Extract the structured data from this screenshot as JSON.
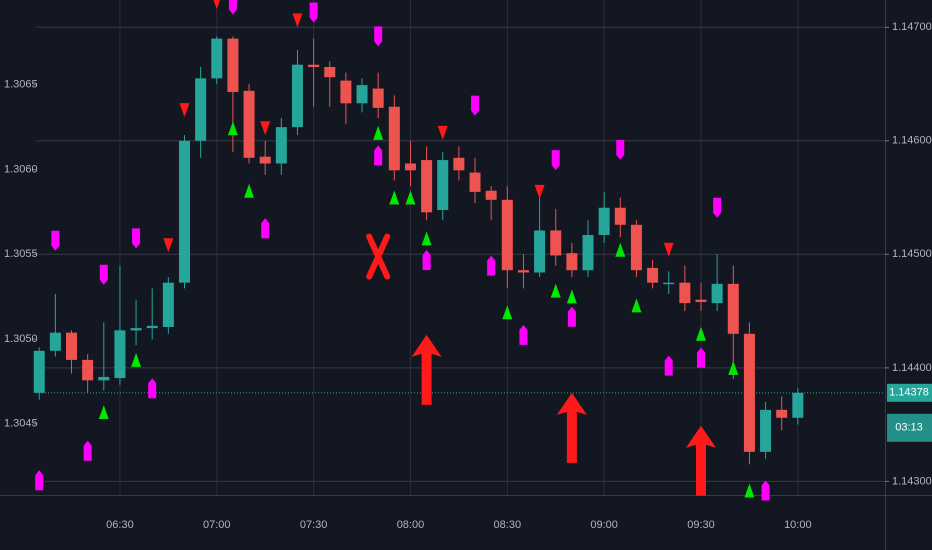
{
  "chart_data": {
    "type": "candlestick",
    "x": [
      365,
      370,
      375,
      380,
      385,
      390,
      395,
      400,
      405,
      410,
      415,
      420,
      425,
      430,
      435,
      440,
      445,
      450,
      455,
      460,
      465,
      470,
      475,
      480,
      485,
      490,
      495,
      500,
      505,
      510,
      515,
      520,
      525,
      530,
      535,
      540,
      545,
      550,
      555,
      560,
      565,
      570,
      575,
      580,
      585,
      590,
      595,
      600
    ],
    "open": [
      1.14378,
      1.14415,
      1.14431,
      1.14407,
      1.14389,
      1.14391,
      1.14433,
      1.14435,
      1.14436,
      1.14475,
      1.146,
      1.14655,
      1.1469,
      1.14644,
      1.14586,
      1.1458,
      1.14612,
      1.14667,
      1.14665,
      1.14653,
      1.14633,
      1.14646,
      1.1463,
      1.1458,
      1.14583,
      1.14539,
      1.14585,
      1.14572,
      1.14556,
      1.14548,
      1.14486,
      1.14484,
      1.14521,
      1.14501,
      1.14486,
      1.14517,
      1.14541,
      1.14526,
      1.14488,
      1.14474,
      1.14475,
      1.1446,
      1.14457,
      1.14474,
      1.1443,
      1.14326,
      1.14363,
      1.14356
    ],
    "high": [
      1.14418,
      1.14465,
      1.14433,
      1.14412,
      1.1444,
      1.1449,
      1.1446,
      1.1447,
      1.1448,
      1.14605,
      1.14665,
      1.14692,
      1.14692,
      1.1465,
      1.146,
      1.1462,
      1.1468,
      1.1469,
      1.1467,
      1.1466,
      1.14655,
      1.1466,
      1.1464,
      1.146,
      1.14595,
      1.1459,
      1.14595,
      1.14585,
      1.1456,
      1.1456,
      1.145,
      1.1456,
      1.1454,
      1.1451,
      1.1453,
      1.14555,
      1.1455,
      1.1453,
      1.14495,
      1.14485,
      1.1449,
      1.14475,
      1.145,
      1.1449,
      1.1444,
      1.1437,
      1.14375,
      1.14382
    ],
    "low": [
      1.14372,
      1.1441,
      1.14395,
      1.14378,
      1.1438,
      1.14385,
      1.1442,
      1.14425,
      1.1443,
      1.1447,
      1.14585,
      1.1465,
      1.1459,
      1.1458,
      1.1457,
      1.1457,
      1.14605,
      1.1463,
      1.1463,
      1.14615,
      1.14625,
      1.1462,
      1.14565,
      1.1456,
      1.1453,
      1.1453,
      1.14565,
      1.14545,
      1.1453,
      1.1447,
      1.1447,
      1.1448,
      1.1449,
      1.1448,
      1.1448,
      1.1451,
      1.14515,
      1.1448,
      1.1447,
      1.14465,
      1.1445,
      1.1445,
      1.1445,
      1.1439,
      1.14315,
      1.1432,
      1.14345,
      1.1435
    ],
    "close": [
      1.14415,
      1.14431,
      1.14407,
      1.14389,
      1.14392,
      1.14433,
      1.14435,
      1.14437,
      1.14475,
      1.146,
      1.14655,
      1.1469,
      1.14643,
      1.14585,
      1.1458,
      1.14612,
      1.14667,
      1.14665,
      1.14656,
      1.14633,
      1.14649,
      1.14629,
      1.14574,
      1.14574,
      1.14537,
      1.14583,
      1.14574,
      1.14555,
      1.14548,
      1.14486,
      1.14484,
      1.14521,
      1.14499,
      1.14486,
      1.14517,
      1.14541,
      1.14526,
      1.14486,
      1.14475,
      1.14475,
      1.14457,
      1.14458,
      1.14474,
      1.1443,
      1.14326,
      1.14363,
      1.14356,
      1.14378
    ],
    "up_color": "#26a69a",
    "down_color": "#ef5350",
    "xlim": [
      364,
      627
    ],
    "xticks": [
      {
        "value": 390,
        "label": "06:30"
      },
      {
        "value": 420,
        "label": "07:00"
      },
      {
        "value": 450,
        "label": "07:30"
      },
      {
        "value": 480,
        "label": "08:00"
      },
      {
        "value": 510,
        "label": "08:30"
      },
      {
        "value": 540,
        "label": "09:00"
      },
      {
        "value": 570,
        "label": "09:30"
      },
      {
        "value": 600,
        "label": "10:00"
      }
    ],
    "ylim": [
      1.14288,
      1.14724
    ],
    "yticks": [
      {
        "value": 1.143,
        "label": "1.14300"
      },
      {
        "value": 1.144,
        "label": "1.14400"
      },
      {
        "value": 1.145,
        "label": "1.14500"
      },
      {
        "value": 1.146,
        "label": "1.14600"
      },
      {
        "value": 1.147,
        "label": "1.14700"
      }
    ],
    "y2lim": [
      1.30408,
      1.307
    ],
    "y2ticks": [
      1.3045,
      {
        "value": 1.305,
        "label": "1.3050"
      },
      1.3055,
      {
        "value": 1.306,
        "label": "1.3060"
      },
      1.3065
    ],
    "grid": true,
    "last_price": {
      "value": 1.14378,
      "label": "1.14378"
    },
    "countdown": "03:13",
    "markers": [
      {
        "shape": "triangle-up",
        "color": "#00e600",
        "points": [
          [
            385,
            1.14361
          ],
          [
            395,
            1.14407
          ],
          [
            425,
            1.14611
          ],
          [
            430,
            1.14556
          ],
          [
            470,
            1.14607
          ],
          [
            475,
            1.1455
          ],
          [
            480,
            1.1455
          ],
          [
            485,
            1.14514
          ],
          [
            510,
            1.14449
          ],
          [
            525,
            1.14468
          ],
          [
            530,
            1.14463
          ],
          [
            545,
            1.14504
          ],
          [
            550,
            1.14455
          ],
          [
            570,
            1.1443
          ],
          [
            580,
            1.144
          ],
          [
            585,
            1.14292
          ]
        ]
      },
      {
        "shape": "triangle-down",
        "color": "#ff1a1a",
        "points": [
          [
            405,
            1.14508
          ],
          [
            410,
            1.14627
          ],
          [
            420,
            1.14722
          ],
          [
            435,
            1.14611
          ],
          [
            445,
            1.14706
          ],
          [
            490,
            1.14607
          ],
          [
            520,
            1.14555
          ],
          [
            560,
            1.14504
          ]
        ]
      },
      {
        "shape": "pin",
        "color": "#ff00ff",
        "points": [
          [
            365,
            1.14301
          ],
          [
            370,
            1.14512
          ],
          [
            380,
            1.14327
          ],
          [
            385,
            1.14482
          ],
          [
            395,
            1.14514
          ],
          [
            400,
            1.14382
          ],
          [
            425,
            1.1472
          ],
          [
            435,
            1.14523
          ],
          [
            450,
            1.14713
          ],
          [
            470,
            1.14692
          ],
          [
            470,
            1.14587
          ],
          [
            485,
            1.14495
          ],
          [
            500,
            1.14631
          ],
          [
            505,
            1.1449
          ],
          [
            515,
            1.14429
          ],
          [
            525,
            1.14583
          ],
          [
            530,
            1.14445
          ],
          [
            545,
            1.14592
          ],
          [
            560,
            1.14402
          ],
          [
            570,
            1.14409
          ],
          [
            575,
            1.14541
          ],
          [
            590,
            1.14292
          ]
        ]
      },
      {
        "shape": "arrow-up",
        "color": "#ff1a1a",
        "points": [
          [
            485,
            1.14429
          ],
          [
            530,
            1.14378
          ],
          [
            570,
            1.14349
          ]
        ]
      },
      {
        "shape": "cross",
        "color": "#ff1a1a",
        "points": [
          [
            470,
            1.14498
          ]
        ]
      }
    ]
  }
}
